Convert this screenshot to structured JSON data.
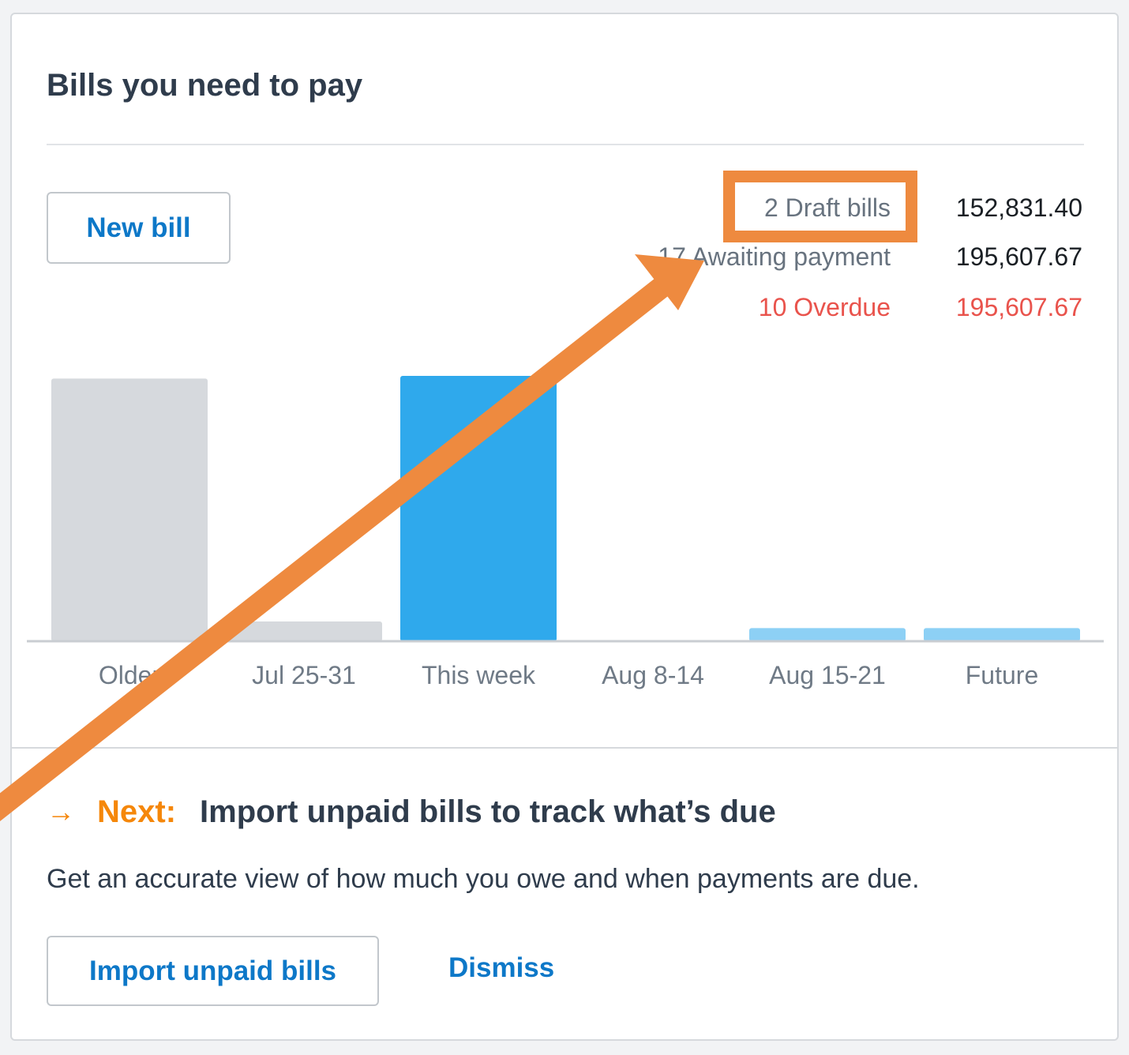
{
  "card": {
    "title": "Bills you need to pay",
    "new_bill_label": "New bill"
  },
  "summary": {
    "draft": {
      "label": "2 Draft bills",
      "value": "152,831.40"
    },
    "awaiting": {
      "label": "17 Awaiting payment",
      "value": "195,607.67"
    },
    "overdue": {
      "label": "10 Overdue",
      "value": "195,607.67"
    }
  },
  "colors": {
    "accent_blue": "#0d78c8",
    "bar_current": "#2fa9ec",
    "bar_future": "#8dd0f5",
    "bar_past": "#d6d9dd",
    "overdue_red": "#e9534c",
    "next_orange": "#f5870a",
    "annotation_orange": "#ee8a3f"
  },
  "chart_data": {
    "type": "bar",
    "categories": [
      "Older",
      "Jul 25-31",
      "This week",
      "Aug 8-14",
      "Aug 15-21",
      "Future"
    ],
    "values": [
      100,
      7.5,
      101,
      0,
      5,
      5
    ],
    "category_status": [
      "past",
      "past",
      "current",
      "future",
      "future",
      "future"
    ],
    "title": "",
    "xlabel": "",
    "ylabel": "",
    "ylim": [
      0,
      101
    ],
    "grid": false,
    "legend": "none"
  },
  "next_step": {
    "arrow": "→",
    "label": "Next:",
    "text": "Import unpaid bills to track what’s due",
    "description": "Get an accurate view of how much you owe and when payments are due.",
    "import_label": "Import unpaid bills",
    "dismiss_label": "Dismiss"
  },
  "annotation": {
    "highlight_color": "#ee8a3f"
  }
}
